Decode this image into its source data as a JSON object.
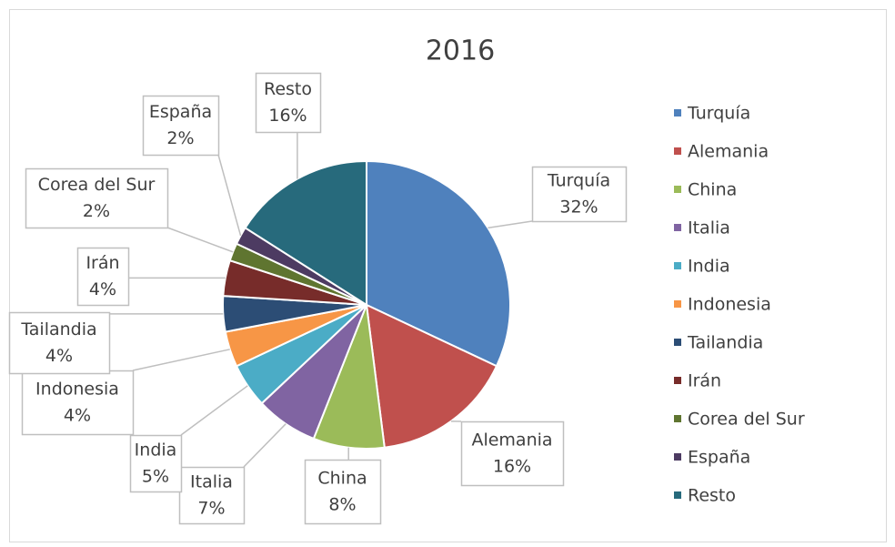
{
  "chart_data": {
    "type": "pie",
    "title": "2016",
    "categories": [
      "Turquía",
      "Alemania",
      "China",
      "Italia",
      "India",
      "Indonesia",
      "Tailandia",
      "Irán",
      "Corea del Sur",
      "España",
      "Resto"
    ],
    "values": [
      32,
      16,
      8,
      7,
      5,
      4,
      4,
      4,
      2,
      2,
      16
    ],
    "value_labels": [
      "32%",
      "16%",
      "8%",
      "7%",
      "5%",
      "4%",
      "4%",
      "4%",
      "2%",
      "2%",
      "16%"
    ],
    "colors": [
      "#4f81bd",
      "#c0504d",
      "#9bbb59",
      "#8064a2",
      "#4bacc6",
      "#f79646",
      "#2c4d75",
      "#772c2a",
      "#5f7530",
      "#4d3b62",
      "#276a7c"
    ],
    "legend": "right"
  }
}
